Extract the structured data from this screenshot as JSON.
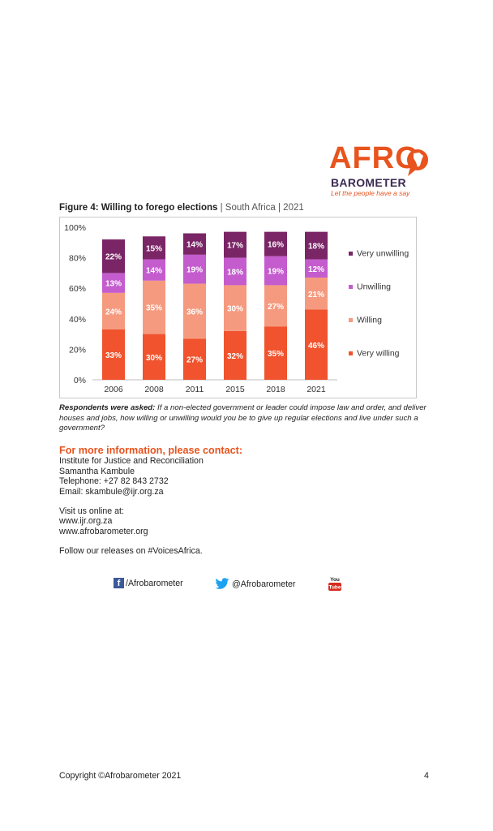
{
  "logo": {
    "line1": "AFRO",
    "line2": "BAROMETER",
    "tagline": "Let the people have a say"
  },
  "figure": {
    "title_bold": "Figure 4: Willing to forego elections",
    "title_rest": " | South Africa | 2021"
  },
  "chart_data": {
    "type": "bar",
    "stacked": true,
    "categories": [
      "2006",
      "2008",
      "2011",
      "2015",
      "2018",
      "2021"
    ],
    "series": [
      {
        "name": "Very willing",
        "values": [
          33,
          30,
          27,
          32,
          35,
          46
        ],
        "color": "#f0532d"
      },
      {
        "name": "Willing",
        "values": [
          24,
          35,
          36,
          30,
          27,
          21
        ],
        "color": "#f59a7f"
      },
      {
        "name": "Unwilling",
        "values": [
          13,
          14,
          19,
          18,
          19,
          12
        ],
        "color": "#c45cce"
      },
      {
        "name": "Very unwilling",
        "values": [
          22,
          15,
          14,
          17,
          16,
          18
        ],
        "color": "#7a2566"
      }
    ],
    "yticks": [
      "0%",
      "20%",
      "40%",
      "60%",
      "80%",
      "100%"
    ],
    "ylim": [
      0,
      100
    ],
    "legend": "right",
    "grid": false
  },
  "note": {
    "bold": "Respondents were asked:",
    "text": " If a non-elected government or leader could impose law and order, and deliver houses and jobs, how willing or unwilling would you be to give up regular elections and live under such a government?"
  },
  "contact": {
    "heading": "For more information, please contact:",
    "org": "Institute for Justice and Reconciliation",
    "name": "Samantha Kambule",
    "phone": "Telephone: +27 82 843 2732",
    "email": "Email: skambule@ijr.org.za",
    "visit": "Visit us online at:",
    "site1": "www.ijr.org.za",
    "site2": "www.afrobarometer.org",
    "follow": "Follow our releases on #VoicesAfrica."
  },
  "social": {
    "facebook": "/Afrobarometer",
    "twitter": "@Afrobarometer",
    "youtube_top": "You",
    "youtube_bottom": "Tube"
  },
  "footer": {
    "copyright": "Copyright ©Afrobarometer 2021",
    "page": "4"
  }
}
